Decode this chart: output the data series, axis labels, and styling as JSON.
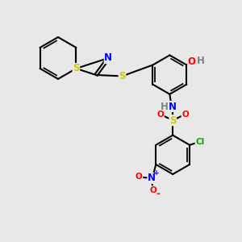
{
  "bg_color": "#e8e8e8",
  "bond_color": "#000000",
  "bond_width": 1.5,
  "atom_colors": {
    "S": "#cccc00",
    "N": "#0000ff",
    "O": "#ff0000",
    "Cl": "#00aa00",
    "H": "#808080",
    "C": "#000000"
  },
  "font_size": 8.5,
  "fig_width": 3.0,
  "fig_height": 3.0,
  "dpi": 100,
  "xlim": [
    0,
    10
  ],
  "ylim": [
    0,
    10
  ]
}
